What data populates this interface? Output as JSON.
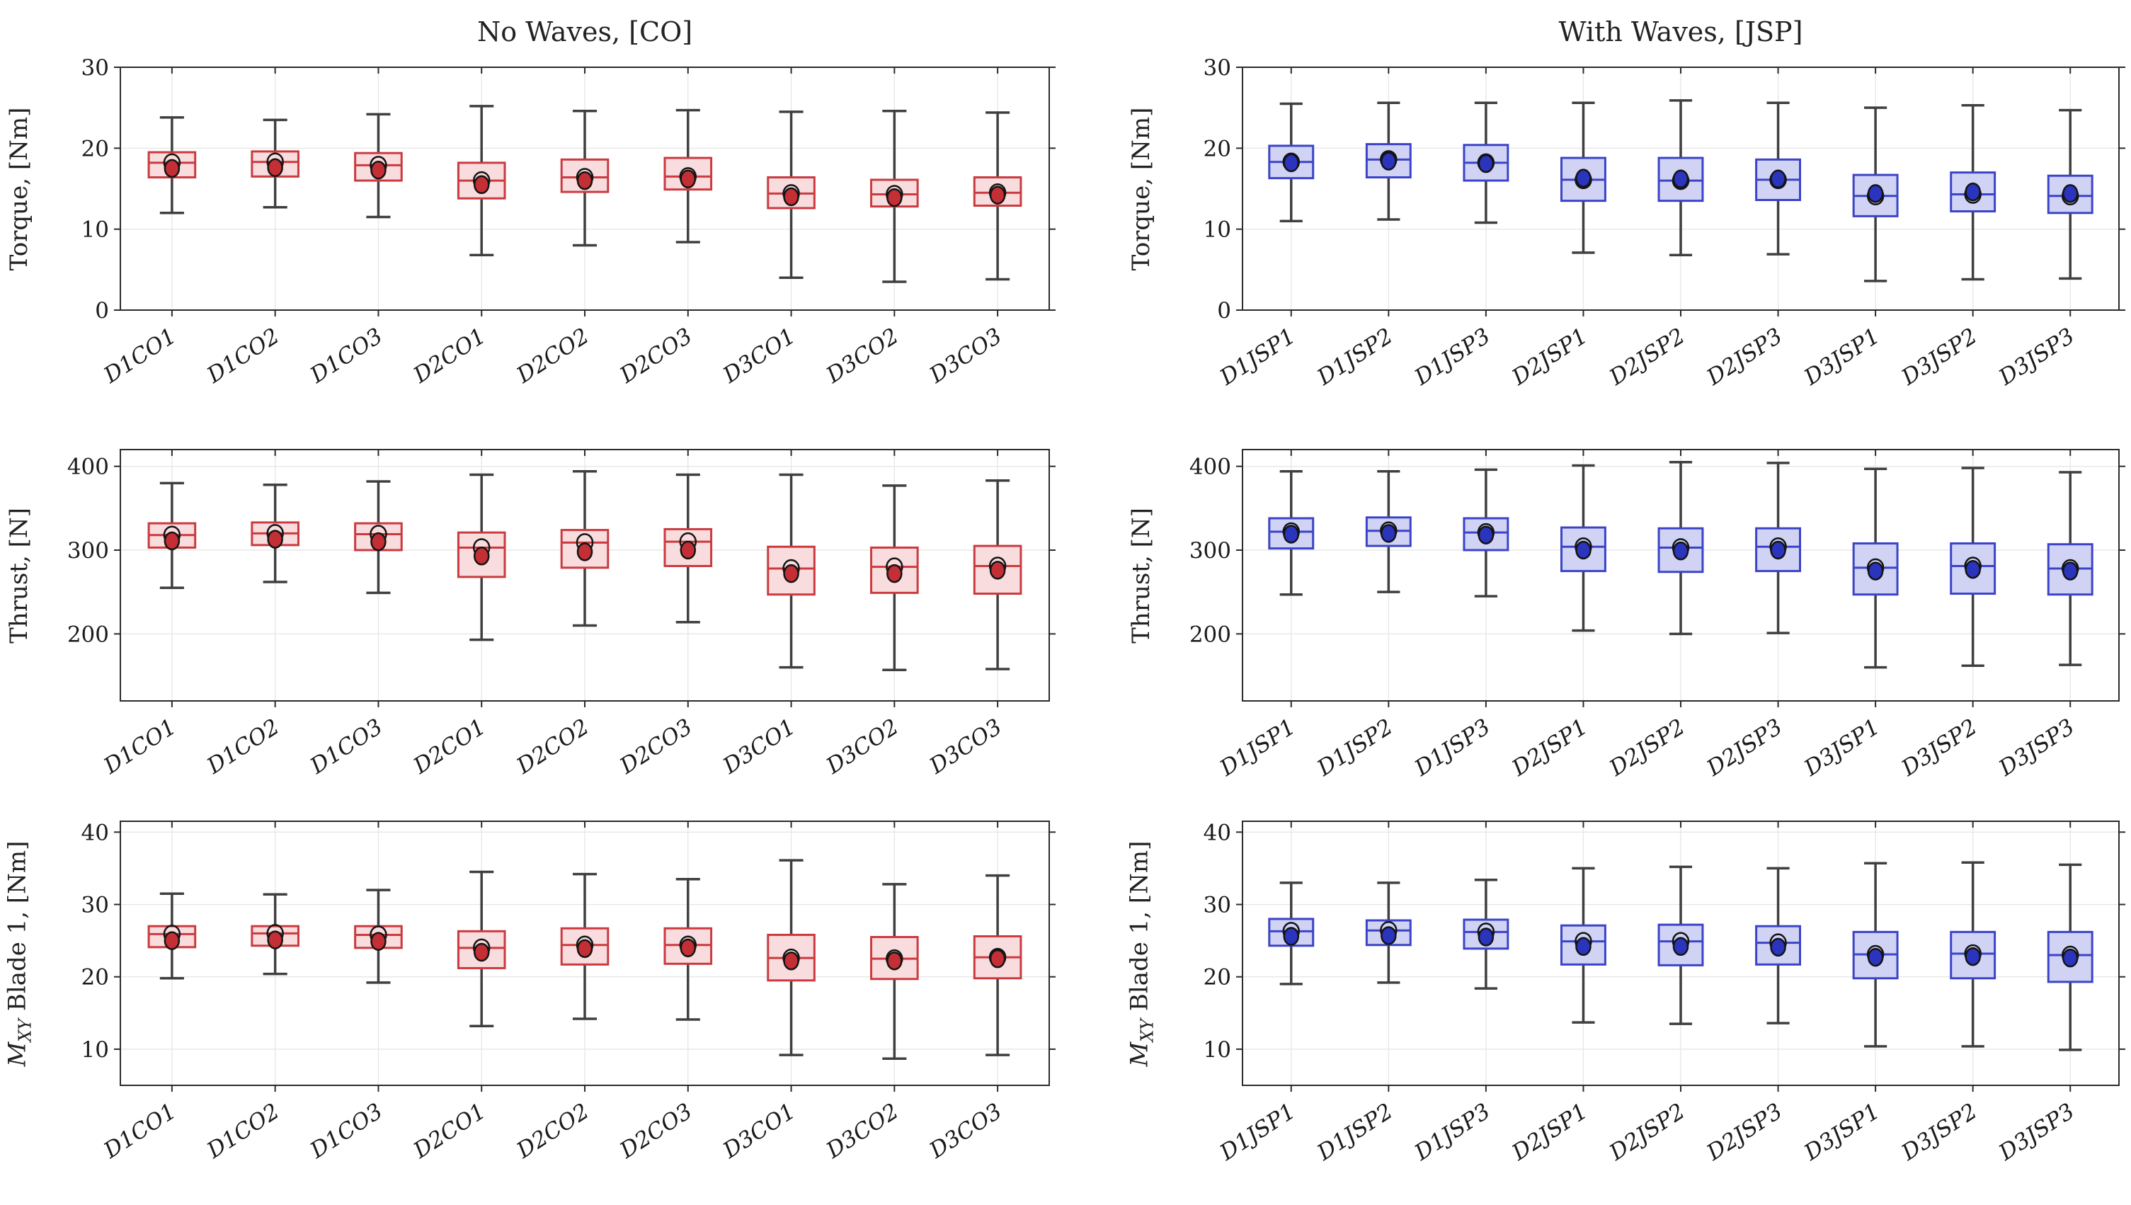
{
  "figure": {
    "titles": {
      "left": "No Waves, [CO]",
      "right": "With Waves, [JSP]"
    },
    "palette": {
      "co_edge": "#cb3a3f",
      "co_fill": "#f8dcde",
      "co_mean": "#c32f35",
      "jsp_edge": "#3c43c8",
      "jsp_fill": "#d0d3f4",
      "jsp_mean": "#2a34bd",
      "whisker": "#3f3f3f",
      "frame": "#2b2b2b",
      "grid": "#e7e7e7",
      "text": "#1a1a1a"
    }
  },
  "chart_data": [
    {
      "type": "box",
      "title": "No Waves, [CO]",
      "ylabel": "Torque, [Nm]",
      "ylim": [
        0,
        30
      ],
      "yticks": [
        0,
        10,
        20,
        30
      ],
      "grid": true,
      "legend_position": "none",
      "colors": {
        "edge": "#cb3a3f",
        "fill": "#f8dcde",
        "mean": "#c32f35",
        "whisker": "#3f3f3f"
      },
      "categories": [
        "D1CO1",
        "D1CO2",
        "D1CO3",
        "D2CO1",
        "D2CO2",
        "D2CO3",
        "D3CO1",
        "D3CO2",
        "D3CO3"
      ],
      "boxes": [
        {
          "category": "D1CO1",
          "whisker_low": 12.0,
          "q1": 16.4,
          "median": 18.2,
          "q3": 19.5,
          "whisker_high": 23.8,
          "mean": 17.5
        },
        {
          "category": "D1CO2",
          "whisker_low": 12.7,
          "q1": 16.5,
          "median": 18.3,
          "q3": 19.6,
          "whisker_high": 23.5,
          "mean": 17.6
        },
        {
          "category": "D1CO3",
          "whisker_low": 11.5,
          "q1": 16.0,
          "median": 17.9,
          "q3": 19.4,
          "whisker_high": 24.2,
          "mean": 17.3
        },
        {
          "category": "D2CO1",
          "whisker_low": 6.8,
          "q1": 13.8,
          "median": 16.0,
          "q3": 18.2,
          "whisker_high": 25.2,
          "mean": 15.5
        },
        {
          "category": "D2CO2",
          "whisker_low": 8.0,
          "q1": 14.6,
          "median": 16.4,
          "q3": 18.6,
          "whisker_high": 24.6,
          "mean": 16.0
        },
        {
          "category": "D2CO3",
          "whisker_low": 8.4,
          "q1": 14.9,
          "median": 16.5,
          "q3": 18.8,
          "whisker_high": 24.7,
          "mean": 16.2
        },
        {
          "category": "D3CO1",
          "whisker_low": 4.0,
          "q1": 12.6,
          "median": 14.4,
          "q3": 16.4,
          "whisker_high": 24.5,
          "mean": 14.0
        },
        {
          "category": "D3CO2",
          "whisker_low": 3.5,
          "q1": 12.8,
          "median": 14.3,
          "q3": 16.1,
          "whisker_high": 24.6,
          "mean": 13.9
        },
        {
          "category": "D3CO3",
          "whisker_low": 3.8,
          "q1": 12.9,
          "median": 14.5,
          "q3": 16.4,
          "whisker_high": 24.4,
          "mean": 14.2
        }
      ]
    },
    {
      "type": "box",
      "title": "With Waves, [JSP]",
      "ylabel": "Torque, [Nm]",
      "ylim": [
        0,
        30
      ],
      "yticks": [
        0,
        10,
        20,
        30
      ],
      "grid": true,
      "legend_position": "none",
      "colors": {
        "edge": "#3c43c8",
        "fill": "#d0d3f4",
        "mean": "#2a34bd",
        "whisker": "#3f3f3f"
      },
      "categories": [
        "D1JSP1",
        "D1JSP2",
        "D1JSP3",
        "D2JSP1",
        "D2JSP2",
        "D2JSP3",
        "D3JSP1",
        "D3JSP2",
        "D3JSP3"
      ],
      "boxes": [
        {
          "category": "D1JSP1",
          "whisker_low": 11.0,
          "q1": 16.3,
          "median": 18.3,
          "q3": 20.3,
          "whisker_high": 25.5,
          "mean": 18.2
        },
        {
          "category": "D1JSP2",
          "whisker_low": 11.2,
          "q1": 16.4,
          "median": 18.6,
          "q3": 20.5,
          "whisker_high": 25.6,
          "mean": 18.4
        },
        {
          "category": "D1JSP3",
          "whisker_low": 10.8,
          "q1": 16.0,
          "median": 18.2,
          "q3": 20.4,
          "whisker_high": 25.6,
          "mean": 18.1
        },
        {
          "category": "D2JSP1",
          "whisker_low": 7.1,
          "q1": 13.5,
          "median": 16.1,
          "q3": 18.8,
          "whisker_high": 25.6,
          "mean": 16.3
        },
        {
          "category": "D2JSP2",
          "whisker_low": 6.8,
          "q1": 13.5,
          "median": 16.0,
          "q3": 18.8,
          "whisker_high": 25.9,
          "mean": 16.2
        },
        {
          "category": "D2JSP3",
          "whisker_low": 6.9,
          "q1": 13.6,
          "median": 16.1,
          "q3": 18.6,
          "whisker_high": 25.6,
          "mean": 16.2
        },
        {
          "category": "D3JSP1",
          "whisker_low": 3.6,
          "q1": 11.6,
          "median": 14.1,
          "q3": 16.7,
          "whisker_high": 25.0,
          "mean": 14.4
        },
        {
          "category": "D3JSP2",
          "whisker_low": 3.8,
          "q1": 12.2,
          "median": 14.3,
          "q3": 17.0,
          "whisker_high": 25.3,
          "mean": 14.6
        },
        {
          "category": "D3JSP3",
          "whisker_low": 3.9,
          "q1": 12.0,
          "median": 14.1,
          "q3": 16.6,
          "whisker_high": 24.7,
          "mean": 14.4
        }
      ]
    },
    {
      "type": "box",
      "title": "",
      "ylabel": "Thrust, [N]",
      "ylim": [
        120,
        420
      ],
      "yticks": [
        200,
        300,
        400
      ],
      "grid": true,
      "legend_position": "none",
      "colors": {
        "edge": "#cb3a3f",
        "fill": "#f8dcde",
        "mean": "#c32f35",
        "whisker": "#3f3f3f"
      },
      "categories": [
        "D1CO1",
        "D1CO2",
        "D1CO3",
        "D2CO1",
        "D2CO2",
        "D2CO3",
        "D3CO1",
        "D3CO2",
        "D3CO3"
      ],
      "boxes": [
        {
          "category": "D1CO1",
          "whisker_low": 255,
          "q1": 303,
          "median": 318,
          "q3": 332,
          "whisker_high": 380,
          "mean": 311
        },
        {
          "category": "D1CO2",
          "whisker_low": 262,
          "q1": 306,
          "median": 320,
          "q3": 333,
          "whisker_high": 378,
          "mean": 313
        },
        {
          "category": "D1CO3",
          "whisker_low": 249,
          "q1": 300,
          "median": 319,
          "q3": 332,
          "whisker_high": 382,
          "mean": 310
        },
        {
          "category": "D2CO1",
          "whisker_low": 193,
          "q1": 268,
          "median": 303,
          "q3": 321,
          "whisker_high": 390,
          "mean": 293
        },
        {
          "category": "D2CO2",
          "whisker_low": 210,
          "q1": 279,
          "median": 309,
          "q3": 324,
          "whisker_high": 394,
          "mean": 298
        },
        {
          "category": "D2CO3",
          "whisker_low": 214,
          "q1": 281,
          "median": 310,
          "q3": 325,
          "whisker_high": 390,
          "mean": 300
        },
        {
          "category": "D3CO1",
          "whisker_low": 160,
          "q1": 247,
          "median": 278,
          "q3": 304,
          "whisker_high": 390,
          "mean": 272
        },
        {
          "category": "D3CO2",
          "whisker_low": 157,
          "q1": 249,
          "median": 280,
          "q3": 303,
          "whisker_high": 377,
          "mean": 272
        },
        {
          "category": "D3CO3",
          "whisker_low": 158,
          "q1": 248,
          "median": 281,
          "q3": 305,
          "whisker_high": 383,
          "mean": 276
        }
      ]
    },
    {
      "type": "box",
      "title": "",
      "ylabel": "Thrust, [N]",
      "ylim": [
        120,
        420
      ],
      "yticks": [
        200,
        300,
        400
      ],
      "grid": true,
      "legend_position": "none",
      "colors": {
        "edge": "#3c43c8",
        "fill": "#d0d3f4",
        "mean": "#2a34bd",
        "whisker": "#3f3f3f"
      },
      "categories": [
        "D1JSP1",
        "D1JSP2",
        "D1JSP3",
        "D2JSP1",
        "D2JSP2",
        "D2JSP3",
        "D3JSP1",
        "D3JSP2",
        "D3JSP3"
      ],
      "boxes": [
        {
          "category": "D1JSP1",
          "whisker_low": 247,
          "q1": 302,
          "median": 322,
          "q3": 338,
          "whisker_high": 394,
          "mean": 319
        },
        {
          "category": "D1JSP2",
          "whisker_low": 250,
          "q1": 305,
          "median": 323,
          "q3": 339,
          "whisker_high": 394,
          "mean": 320
        },
        {
          "category": "D1JSP3",
          "whisker_low": 245,
          "q1": 300,
          "median": 321,
          "q3": 338,
          "whisker_high": 396,
          "mean": 318
        },
        {
          "category": "D2JSP1",
          "whisker_low": 204,
          "q1": 275,
          "median": 304,
          "q3": 327,
          "whisker_high": 401,
          "mean": 300
        },
        {
          "category": "D2JSP2",
          "whisker_low": 200,
          "q1": 274,
          "median": 303,
          "q3": 326,
          "whisker_high": 405,
          "mean": 299
        },
        {
          "category": "D2JSP3",
          "whisker_low": 201,
          "q1": 275,
          "median": 304,
          "q3": 326,
          "whisker_high": 404,
          "mean": 300
        },
        {
          "category": "D3JSP1",
          "whisker_low": 160,
          "q1": 247,
          "median": 279,
          "q3": 308,
          "whisker_high": 397,
          "mean": 275
        },
        {
          "category": "D3JSP2",
          "whisker_low": 162,
          "q1": 248,
          "median": 281,
          "q3": 308,
          "whisker_high": 398,
          "mean": 277
        },
        {
          "category": "D3JSP3",
          "whisker_low": 163,
          "q1": 247,
          "median": 278,
          "q3": 307,
          "whisker_high": 393,
          "mean": 275
        }
      ]
    },
    {
      "type": "box",
      "title": "",
      "ylabel": "M_XY Blade 1, [Nm]",
      "ylabel_parts": [
        "M",
        "XY",
        " Blade 1, [Nm]"
      ],
      "ylim": [
        5,
        41.5
      ],
      "yticks": [
        10,
        20,
        30,
        40
      ],
      "grid": true,
      "legend_position": "none",
      "colors": {
        "edge": "#cb3a3f",
        "fill": "#f8dcde",
        "mean": "#c32f35",
        "whisker": "#3f3f3f"
      },
      "categories": [
        "D1CO1",
        "D1CO2",
        "D1CO3",
        "D2CO1",
        "D2CO2",
        "D2CO3",
        "D3CO1",
        "D3CO2",
        "D3CO3"
      ],
      "boxes": [
        {
          "category": "D1CO1",
          "whisker_low": 19.8,
          "q1": 24.1,
          "median": 25.9,
          "q3": 27.0,
          "whisker_high": 31.5,
          "mean": 25.0
        },
        {
          "category": "D1CO2",
          "whisker_low": 20.4,
          "q1": 24.3,
          "median": 26.0,
          "q3": 27.0,
          "whisker_high": 31.4,
          "mean": 25.1
        },
        {
          "category": "D1CO3",
          "whisker_low": 19.2,
          "q1": 24.0,
          "median": 25.8,
          "q3": 27.0,
          "whisker_high": 32.0,
          "mean": 24.9
        },
        {
          "category": "D2CO1",
          "whisker_low": 13.2,
          "q1": 21.2,
          "median": 24.0,
          "q3": 26.3,
          "whisker_high": 34.5,
          "mean": 23.4
        },
        {
          "category": "D2CO2",
          "whisker_low": 14.2,
          "q1": 21.7,
          "median": 24.4,
          "q3": 26.7,
          "whisker_high": 34.2,
          "mean": 23.9
        },
        {
          "category": "D2CO3",
          "whisker_low": 14.1,
          "q1": 21.8,
          "median": 24.4,
          "q3": 26.7,
          "whisker_high": 33.5,
          "mean": 24.0
        },
        {
          "category": "D3CO1",
          "whisker_low": 9.2,
          "q1": 19.5,
          "median": 22.6,
          "q3": 25.8,
          "whisker_high": 36.1,
          "mean": 22.2
        },
        {
          "category": "D3CO2",
          "whisker_low": 8.7,
          "q1": 19.7,
          "median": 22.5,
          "q3": 25.5,
          "whisker_high": 32.8,
          "mean": 22.2
        },
        {
          "category": "D3CO3",
          "whisker_low": 9.2,
          "q1": 19.8,
          "median": 22.7,
          "q3": 25.6,
          "whisker_high": 34.0,
          "mean": 22.5
        }
      ]
    },
    {
      "type": "box",
      "title": "",
      "ylabel": "M_XY Blade 1, [Nm]",
      "ylabel_parts": [
        "M",
        "XY",
        " Blade 1, [Nm]"
      ],
      "ylim": [
        5,
        41.5
      ],
      "yticks": [
        10,
        20,
        30,
        40
      ],
      "grid": true,
      "legend_position": "none",
      "colors": {
        "edge": "#3c43c8",
        "fill": "#d0d3f4",
        "mean": "#2a34bd",
        "whisker": "#3f3f3f"
      },
      "categories": [
        "D1JSP1",
        "D1JSP2",
        "D1JSP3",
        "D2JSP1",
        "D2JSP2",
        "D2JSP3",
        "D3JSP1",
        "D3JSP2",
        "D3JSP3"
      ],
      "boxes": [
        {
          "category": "D1JSP1",
          "whisker_low": 19.0,
          "q1": 24.3,
          "median": 26.3,
          "q3": 28.0,
          "whisker_high": 33.0,
          "mean": 25.6
        },
        {
          "category": "D1JSP2",
          "whisker_low": 19.2,
          "q1": 24.4,
          "median": 26.4,
          "q3": 27.8,
          "whisker_high": 33.0,
          "mean": 25.7
        },
        {
          "category": "D1JSP3",
          "whisker_low": 18.4,
          "q1": 23.9,
          "median": 26.2,
          "q3": 27.9,
          "whisker_high": 33.4,
          "mean": 25.5
        },
        {
          "category": "D2JSP1",
          "whisker_low": 13.7,
          "q1": 21.7,
          "median": 24.9,
          "q3": 27.1,
          "whisker_high": 35.0,
          "mean": 24.2
        },
        {
          "category": "D2JSP2",
          "whisker_low": 13.5,
          "q1": 21.6,
          "median": 24.9,
          "q3": 27.2,
          "whisker_high": 35.2,
          "mean": 24.2
        },
        {
          "category": "D2JSP3",
          "whisker_low": 13.6,
          "q1": 21.7,
          "median": 24.7,
          "q3": 27.0,
          "whisker_high": 35.0,
          "mean": 24.1
        },
        {
          "category": "D3JSP1",
          "whisker_low": 10.4,
          "q1": 19.8,
          "median": 23.1,
          "q3": 26.2,
          "whisker_high": 35.7,
          "mean": 22.7
        },
        {
          "category": "D3JSP2",
          "whisker_low": 10.4,
          "q1": 19.8,
          "median": 23.2,
          "q3": 26.2,
          "whisker_high": 35.8,
          "mean": 22.8
        },
        {
          "category": "D3JSP3",
          "whisker_low": 9.9,
          "q1": 19.3,
          "median": 23.0,
          "q3": 26.2,
          "whisker_high": 35.5,
          "mean": 22.6
        }
      ]
    }
  ]
}
